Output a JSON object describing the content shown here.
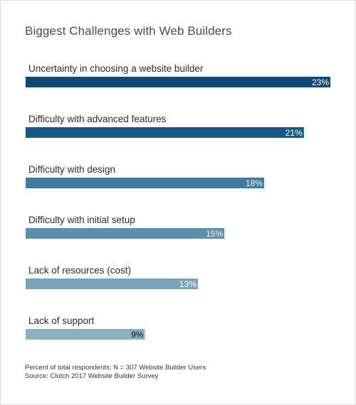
{
  "colors": {
    "bars": [
      "#0e4a75",
      "#165a85",
      "#3d7a9e",
      "#5a8fb0",
      "#79a3bd",
      "#8eb0c4"
    ],
    "value_text_light": "#ffffff",
    "value_text_dark": "#111111"
  },
  "chart_data": {
    "type": "bar",
    "orientation": "horizontal",
    "title": "Biggest Challenges with Web Builders",
    "categories": [
      "Uncertainty in choosing a website builder",
      "Difficulty with advanced features",
      "Difficulty with design",
      "Difficulty with initial setup",
      "Lack of resources (cost)",
      "Lack of support"
    ],
    "values": [
      23,
      21,
      18,
      15,
      13,
      9
    ],
    "value_labels": [
      "23%",
      "21%",
      "18%",
      "15%",
      "13%",
      "9%"
    ],
    "xlim": [
      0,
      23
    ],
    "grid": false,
    "legend": "none"
  },
  "footer": {
    "note": "Percent of total respondents; N = 307 Website Builder Users",
    "source": "Source: Clutch 2017 Website Builder Survey"
  }
}
